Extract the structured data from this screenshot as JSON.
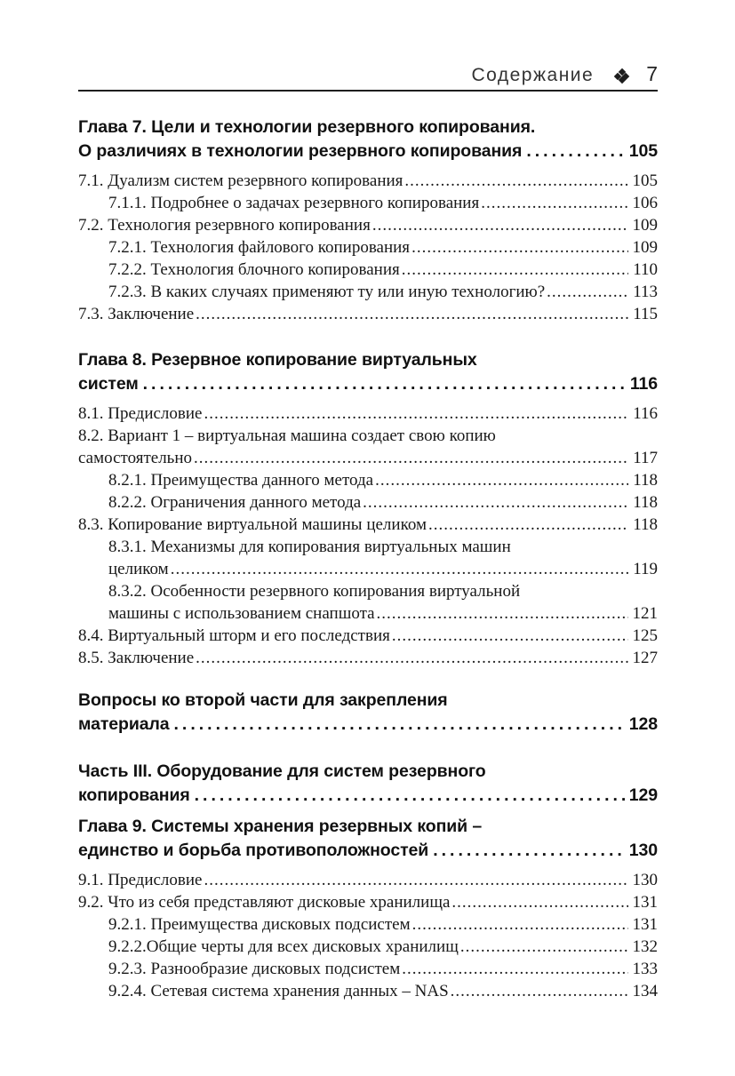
{
  "header": {
    "title": "Содержание",
    "separator_icon": "diamond-ornament",
    "page_number": "7"
  },
  "toc": {
    "sections": [
      {
        "style": "chapter",
        "heading_lines": [
          "Глава 7. Цели и технологии резервного копирования.",
          "О различиях в технологии резервного копирования"
        ],
        "page": "105",
        "entries": [
          {
            "level": 0,
            "lines": [
              "7.1. Дуализм систем резервного копирования"
            ],
            "page": "105"
          },
          {
            "level": 1,
            "lines": [
              "7.1.1. Подробнее о задачах резервного копирования"
            ],
            "page": "106"
          },
          {
            "level": 0,
            "lines": [
              "7.2. Технология резервного копирования"
            ],
            "page": "109"
          },
          {
            "level": 1,
            "lines": [
              "7.2.1. Технология файлового копирования"
            ],
            "page": "109"
          },
          {
            "level": 1,
            "lines": [
              "7.2.2. Технология блочного копирования"
            ],
            "page": "110"
          },
          {
            "level": 1,
            "lines": [
              "7.2.3. В каких случаях применяют ту или иную технологию?"
            ],
            "page": "113"
          },
          {
            "level": 0,
            "lines": [
              "7.3. Заключение"
            ],
            "page": "115"
          }
        ]
      },
      {
        "style": "chapter",
        "heading_lines": [
          "Глава 8. Резервное копирование виртуальных",
          "систем"
        ],
        "page": "116",
        "entries": [
          {
            "level": 0,
            "lines": [
              "8.1. Предисловие"
            ],
            "page": "116"
          },
          {
            "level": 0,
            "lines": [
              "8.2. Вариант 1 – виртуальная машина создает свою копию",
              "самостоятельно"
            ],
            "page": "117"
          },
          {
            "level": 1,
            "lines": [
              "8.2.1. Преимущества данного метода"
            ],
            "page": "118"
          },
          {
            "level": 1,
            "lines": [
              "8.2.2. Ограничения данного метода"
            ],
            "page": "118"
          },
          {
            "level": 0,
            "lines": [
              "8.3. Копирование виртуальной машины целиком"
            ],
            "page": "118"
          },
          {
            "level": 1,
            "lines": [
              "8.3.1. Механизмы для копирования виртуальных машин",
              "целиком"
            ],
            "page": "119"
          },
          {
            "level": 1,
            "lines": [
              "8.3.2. Особенности резервного копирования виртуальной",
              "машины с использованием снапшота"
            ],
            "page": "121"
          },
          {
            "level": 0,
            "lines": [
              "8.4. Виртуальный шторм и его последствия"
            ],
            "page": "125"
          },
          {
            "level": 0,
            "lines": [
              "8.5. Заключение"
            ],
            "page": "127"
          }
        ]
      },
      {
        "style": "chapter",
        "heading_lines": [
          "Вопросы ко второй части для закрепления",
          "материала"
        ],
        "page": "128",
        "entries": []
      },
      {
        "style": "part",
        "heading_lines": [
          "Часть III. Оборудование для систем резервного",
          "копирования"
        ],
        "page": "129",
        "entries": []
      },
      {
        "style": "chapter",
        "heading_lines": [
          "Глава 9. Системы хранения резервных копий –",
          "единство и борьба противоположностей"
        ],
        "page": "130",
        "entries": [
          {
            "level": 0,
            "lines": [
              "9.1. Предисловие"
            ],
            "page": "130"
          },
          {
            "level": 0,
            "lines": [
              "9.2. Что из себя представляют дисковые хранилища"
            ],
            "page": "131"
          },
          {
            "level": 1,
            "lines": [
              "9.2.1. Преимущества дисковых подсистем"
            ],
            "page": "131"
          },
          {
            "level": 1,
            "lines": [
              "9.2.2.Общие черты для всех дисковых хранилищ"
            ],
            "page": "132"
          },
          {
            "level": 1,
            "lines": [
              "9.2.3. Разнообразие дисковых подсистем"
            ],
            "page": "133"
          },
          {
            "level": 1,
            "lines": [
              "9.2.4. Сетевая система хранения данных – NAS"
            ],
            "page": "134"
          }
        ]
      }
    ]
  }
}
